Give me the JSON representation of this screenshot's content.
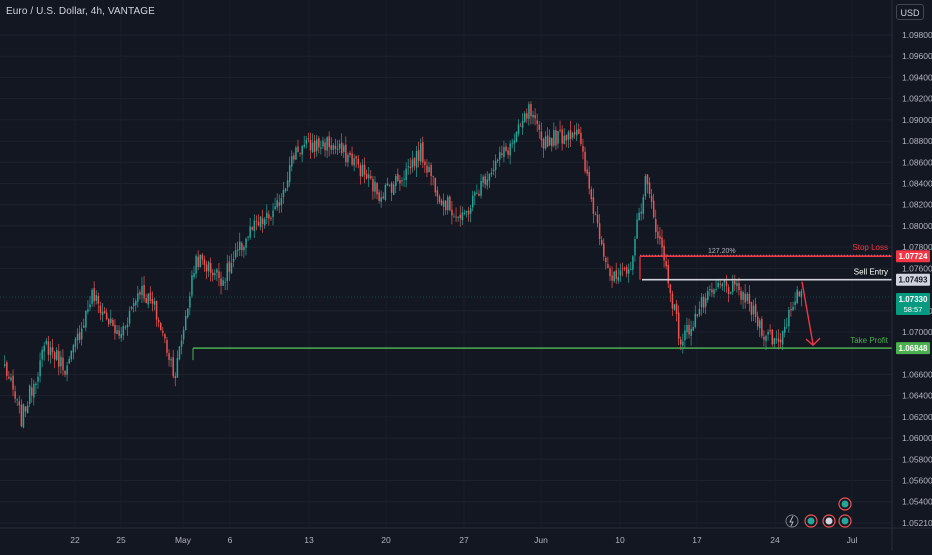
{
  "header": {
    "symbol_title": "Euro / U.S. Dollar, 4h, VANTAGE",
    "currency_button": "USD"
  },
  "colors": {
    "background": "#131722",
    "up_candle": "#26a69a",
    "down_candle": "#ef5350",
    "stop_loss": "#f23645",
    "sell_entry": "#d1d4dc",
    "take_profit": "#4caf50",
    "current_price": "#089981",
    "axis_text": "#b2b5be"
  },
  "price_axis": {
    "ticks": [
      "1.09800",
      "1.09600",
      "1.09400",
      "1.09200",
      "1.09000",
      "1.08800",
      "1.08600",
      "1.08400",
      "1.08200",
      "1.08000",
      "1.07800",
      "1.07600",
      "1.07200",
      "1.07000",
      "1.06600",
      "1.06400",
      "1.06200",
      "1.06000",
      "1.05800",
      "1.05600",
      "1.05400",
      "1.05210"
    ]
  },
  "time_axis": {
    "labels": [
      "22",
      "25",
      "May",
      "6",
      "13",
      "20",
      "27",
      "Jun",
      "10",
      "17",
      "24",
      "Jul"
    ]
  },
  "levels": {
    "stop_loss": {
      "label": "Stop Loss",
      "price": "1.07724"
    },
    "fib": {
      "label": "127.20%"
    },
    "sell_entry": {
      "label": "Sell Entry",
      "price": "1.07493"
    },
    "current": {
      "price": "1.07330",
      "countdown": "58:57"
    },
    "take_profit": {
      "label": "Take Profit",
      "price": "1.06848"
    }
  },
  "chart_data": {
    "type": "candlestick",
    "title": "Euro / U.S. Dollar, 4h, VANTAGE",
    "x": [
      "22",
      "25",
      "May",
      "6",
      "13",
      "20",
      "27",
      "Jun",
      "10",
      "17",
      "24",
      "Jul"
    ],
    "ylim": [
      1.052,
      1.099
    ],
    "anchors": [
      [
        0,
        1.0668
      ],
      [
        8,
        1.0618
      ],
      [
        20,
        1.0688
      ],
      [
        30,
        1.0665
      ],
      [
        42,
        1.0735
      ],
      [
        55,
        1.0695
      ],
      [
        65,
        1.0742
      ],
      [
        72,
        1.0722
      ],
      [
        82,
        1.066
      ],
      [
        92,
        1.077
      ],
      [
        105,
        1.075
      ],
      [
        118,
        1.0795
      ],
      [
        130,
        1.0812
      ],
      [
        140,
        1.0873
      ],
      [
        155,
        1.0878
      ],
      [
        168,
        1.0862
      ],
      [
        180,
        1.083
      ],
      [
        190,
        1.0845
      ],
      [
        200,
        1.087
      ],
      [
        210,
        1.0826
      ],
      [
        220,
        1.0805
      ],
      [
        232,
        1.085
      ],
      [
        245,
        1.088
      ],
      [
        252,
        1.0908
      ],
      [
        258,
        1.088
      ],
      [
        268,
        1.0885
      ],
      [
        275,
        1.0892
      ],
      [
        282,
        1.0825
      ],
      [
        292,
        1.0748
      ],
      [
        300,
        1.0755
      ],
      [
        308,
        1.0843
      ],
      [
        318,
        1.076
      ],
      [
        325,
        1.069
      ],
      [
        335,
        1.0725
      ],
      [
        345,
        1.0745
      ],
      [
        355,
        1.0735
      ],
      [
        365,
        1.07
      ],
      [
        372,
        1.069
      ],
      [
        380,
        1.0735
      ],
      [
        383,
        1.0733
      ]
    ],
    "levels": {
      "stop_loss": 1.07724,
      "sell_entry": 1.07493,
      "current": 1.0733,
      "take_profit": 1.06848
    }
  }
}
